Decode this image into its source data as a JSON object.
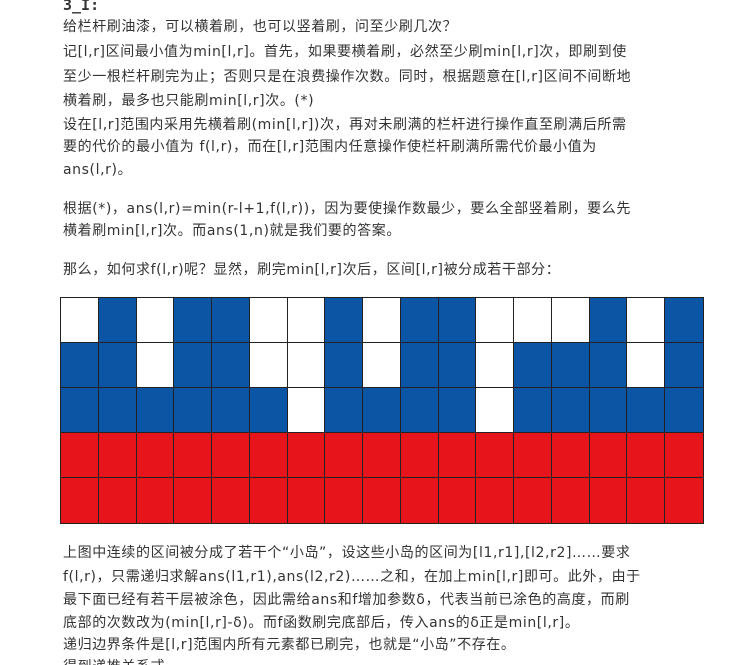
{
  "heading": "3_I:",
  "paragraphs": [
    "给栏杆刷油漆，可以横着刷，也可以竖着刷，问至少刷几次？",
    "记[l,r]区间最小值为min[l,r]。首先，如果要横着刷，必然至少刷min[l,r]次，即刷到使",
    "至少一根栏杆刷完为止；否则只是在浪费操作次数。同时，根据题意在[l,r]区间不间断地",
    "横着刷，最多也只能刷min[l,r]次。(*)",
    "设在[l,r]范围内采用先横着刷(min[l,r])次，再对未刷满的栏杆进行操作直至刷满后所需",
    "要的代价的最小值为 f(l,r)，而在[l,r]范围内任意操作使栏杆刷满所需代价最小值为",
    "ans(l,r)。",
    "根据(*)，ans(l,r)=min(r-l+1,f(l,r))，因为要使操作数最少，要么全部竖着刷，要么先",
    "横着刷min[l,r]次。而ans(1,n)就是我们要的答案。",
    "那么，如何求f(l,r)呢？显然，刷完min[l,r]次后，区间[l,r]被分成若干部分：",
    "上图中连续的区间被分成了若干个“小岛”，设这些小岛的区间为[l1,r1],[l2,r2]……要求",
    "f(l,r)，只需递归求解ans(l1,r1),ans(l2,r2)……之和，在加上min[l,r]即可。此外，由于",
    "最下面已经有若干层被涂色，因此需给ans和f增加参数δ，代表当前已涂色的高度，而刷",
    "底部的次数改为(min[l,r]-δ)。而f函数刷完底部后，传入ans的δ正是min[l,r]。",
    "递归边界条件是[l,r]范围内所有元素都已刷完，也就是“小岛”不存在。",
    "得到递推关系式"
  ],
  "figure": {
    "rows": 5,
    "cols": 17,
    "colors": {
      "w": "#ffffff",
      "b": "#0b55a4",
      "r": "#e7141b",
      "grid": "#222222"
    },
    "cells": [
      [
        "w",
        "b",
        "w",
        "b",
        "b",
        "w",
        "w",
        "b",
        "w",
        "b",
        "b",
        "w",
        "w",
        "w",
        "b",
        "w",
        "b"
      ],
      [
        "b",
        "b",
        "w",
        "b",
        "b",
        "w",
        "w",
        "b",
        "w",
        "b",
        "b",
        "w",
        "b",
        "b",
        "b",
        "w",
        "b"
      ],
      [
        "b",
        "b",
        "b",
        "b",
        "b",
        "b",
        "w",
        "b",
        "b",
        "b",
        "b",
        "w",
        "b",
        "b",
        "b",
        "b",
        "b"
      ],
      [
        "r",
        "r",
        "r",
        "r",
        "r",
        "r",
        "r",
        "r",
        "r",
        "r",
        "r",
        "r",
        "r",
        "r",
        "r",
        "r",
        "r"
      ],
      [
        "r",
        "r",
        "r",
        "r",
        "r",
        "r",
        "r",
        "r",
        "r",
        "r",
        "r",
        "r",
        "r",
        "r",
        "r",
        "r",
        "r"
      ]
    ]
  }
}
